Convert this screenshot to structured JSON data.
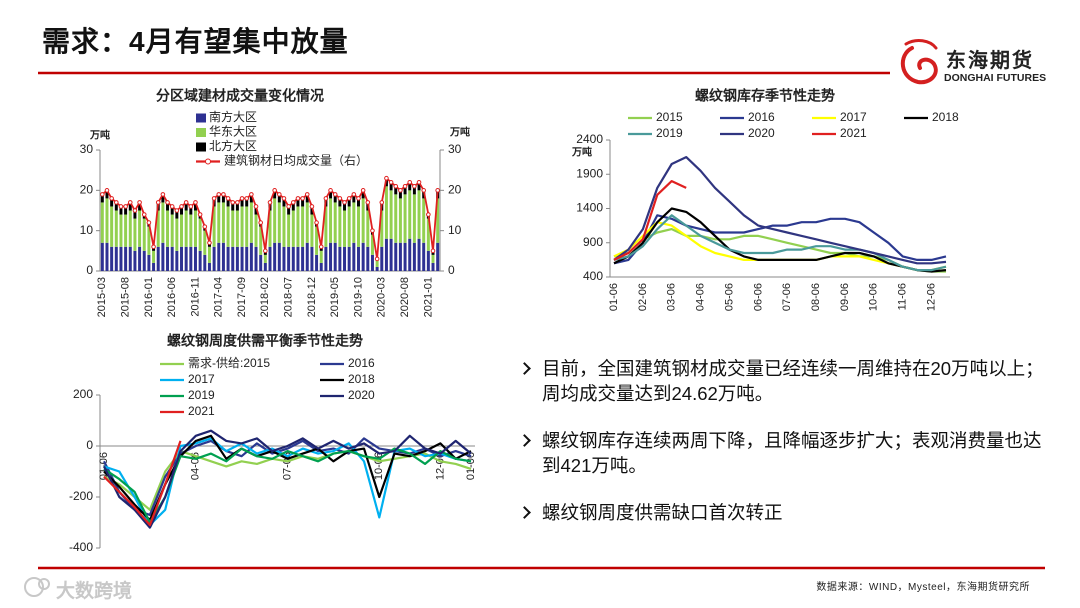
{
  "header": {
    "title": "需求：4月有望集中放量",
    "logo_cn": "东海期货",
    "logo_en": "DONGHAI FUTURES"
  },
  "bullets": [
    "目前，全国建筑钢材成交量已经连续一周维持在20万吨以上；周均成交量达到24.62万吨。",
    "螺纹钢库存连续两周下降，且降幅逐步扩大；表观消费量也达到421万吨。",
    "螺纹钢周度供需缺口首次转正"
  ],
  "source": "数据来源：WIND，Mysteel，东海期货研究所",
  "watermark": "大数跨境",
  "chart_data": [
    {
      "type": "bar",
      "stacked": true,
      "title": "分区域建材成交量变化情况",
      "y_label": "万吨",
      "y2_label": "万吨",
      "categories": [
        "2015-03",
        null,
        null,
        null,
        null,
        "2015-08",
        null,
        null,
        null,
        null,
        "2016-01",
        null,
        null,
        null,
        null,
        "2016-06",
        null,
        null,
        null,
        null,
        "2016-11",
        null,
        null,
        null,
        null,
        "2017-04",
        null,
        null,
        null,
        null,
        "2017-09",
        null,
        null,
        null,
        null,
        "2018-02",
        null,
        null,
        null,
        null,
        "2018-07",
        null,
        null,
        null,
        null,
        "2018-12",
        null,
        null,
        null,
        null,
        "2019-05",
        null,
        null,
        null,
        null,
        "2019-10",
        null,
        null,
        null,
        null,
        "2020-03",
        null,
        null,
        null,
        null,
        "2020-08",
        null,
        null,
        null,
        null,
        "2021-01",
        null,
        null
      ],
      "series": [
        {
          "name": "南方大区",
          "color": "#2e3192",
          "values": [
            7,
            7,
            6,
            6,
            6,
            6,
            6,
            5,
            6,
            5,
            4,
            2,
            6,
            7,
            6,
            6,
            5,
            6,
            6,
            6,
            6,
            5,
            4,
            2,
            6,
            7,
            7,
            6,
            6,
            6,
            6,
            6,
            7,
            6,
            4,
            2,
            6,
            7,
            7,
            6,
            6,
            6,
            6,
            6,
            7,
            6,
            4,
            2,
            6,
            7,
            7,
            6,
            6,
            6,
            7,
            6,
            7,
            6,
            4,
            1,
            6,
            8,
            8,
            7,
            7,
            7,
            8,
            7,
            8,
            7,
            5,
            2,
            7
          ]
        },
        {
          "name": "华东大区",
          "color": "#92d050",
          "values": [
            10,
            11,
            10,
            9,
            8,
            8,
            9,
            8,
            9,
            8,
            7,
            3,
            9,
            10,
            9,
            8,
            8,
            8,
            9,
            8,
            9,
            8,
            6,
            4,
            10,
            10,
            10,
            10,
            9,
            9,
            10,
            10,
            10,
            8,
            7,
            2,
            9,
            11,
            10,
            10,
            8,
            9,
            10,
            10,
            10,
            8,
            7,
            3,
            10,
            11,
            10,
            10,
            9,
            10,
            10,
            10,
            11,
            9,
            5,
            2,
            9,
            13,
            12,
            12,
            11,
            12,
            12,
            12,
            12,
            11,
            8,
            2,
            11
          ]
        },
        {
          "name": "北方大区",
          "color": "#000000",
          "values": [
            2,
            2,
            2,
            2,
            2,
            2,
            2,
            2,
            2,
            1,
            1,
            1,
            2,
            2,
            2,
            2,
            2,
            2,
            2,
            2,
            2,
            1,
            1,
            1,
            2,
            2,
            2,
            2,
            2,
            2,
            2,
            2,
            2,
            2,
            1,
            1,
            2,
            2,
            2,
            2,
            2,
            2,
            2,
            2,
            2,
            2,
            1,
            1,
            2,
            2,
            2,
            2,
            2,
            2,
            2,
            2,
            2,
            2,
            1,
            0,
            2,
            2,
            2,
            2,
            2,
            2,
            2,
            2,
            2,
            2,
            1,
            1,
            2
          ]
        },
        {
          "name": "建筑钢材日均成交量（右）",
          "color": "#e02020",
          "type": "line",
          "axis": "y2",
          "values": [
            19,
            20,
            18,
            17,
            16,
            16,
            17,
            15,
            17,
            14,
            12,
            6,
            17,
            19,
            17,
            16,
            15,
            16,
            17,
            16,
            17,
            14,
            11,
            7,
            18,
            19,
            19,
            18,
            17,
            17,
            18,
            18,
            19,
            16,
            12,
            5,
            17,
            20,
            19,
            18,
            16,
            17,
            18,
            18,
            19,
            16,
            12,
            6,
            18,
            20,
            19,
            18,
            17,
            18,
            19,
            18,
            20,
            17,
            10,
            3,
            17,
            23,
            22,
            21,
            20,
            21,
            22,
            21,
            22,
            20,
            14,
            5,
            20
          ]
        }
      ],
      "ylim": [
        0,
        30
      ],
      "yticks": [
        0,
        10,
        20,
        30
      ],
      "y2lim": [
        0,
        30
      ],
      "y2ticks": [
        0,
        10,
        20,
        30
      ],
      "grid": false
    },
    {
      "type": "line",
      "title": "螺纹钢库存季节性走势",
      "y_label": "万吨",
      "categories": [
        "01-06",
        null,
        "02-06",
        null,
        "03-06",
        null,
        "04-06",
        null,
        "05-06",
        null,
        "06-06",
        null,
        "07-06",
        null,
        "08-06",
        null,
        "09-06",
        null,
        "10-06",
        null,
        "11-06",
        null,
        "12-06",
        null
      ],
      "series": [
        {
          "name": "2015",
          "color": "#92d050",
          "values": [
            700,
            750,
            950,
            1050,
            1100,
            1000,
            1000,
            950,
            950,
            1000,
            1000,
            950,
            900,
            850,
            800,
            750,
            750,
            700,
            700,
            650,
            550,
            500,
            480,
            480
          ]
        },
        {
          "name": "2016",
          "color": "#2b3990",
          "values": [
            600,
            650,
            900,
            1300,
            1250,
            1150,
            1100,
            1050,
            1050,
            1050,
            1100,
            1150,
            1150,
            1200,
            1200,
            1250,
            1250,
            1200,
            1050,
            900,
            700,
            650,
            650,
            700
          ]
        },
        {
          "name": "2017",
          "color": "#ffff00",
          "values": [
            700,
            800,
            1000,
            1200,
            1150,
            1000,
            850,
            750,
            700,
            650,
            650,
            650,
            650,
            650,
            650,
            700,
            700,
            700,
            650,
            600,
            550,
            500,
            500,
            550
          ]
        },
        {
          "name": "2018",
          "color": "#000000",
          "values": [
            600,
            700,
            900,
            1200,
            1400,
            1350,
            1200,
            1000,
            800,
            700,
            650,
            650,
            650,
            650,
            650,
            700,
            750,
            750,
            700,
            600,
            550,
            500,
            480,
            500
          ]
        },
        {
          "name": "2019",
          "color": "#4a9a9a",
          "values": [
            650,
            700,
            850,
            1100,
            1300,
            1150,
            1000,
            900,
            800,
            750,
            750,
            750,
            800,
            800,
            850,
            850,
            800,
            800,
            750,
            650,
            550,
            500,
            500,
            550
          ]
        },
        {
          "name": "2020",
          "color": "#303580",
          "values": [
            650,
            800,
            1100,
            1700,
            2050,
            2150,
            1950,
            1700,
            1500,
            1300,
            1150,
            1100,
            1050,
            1000,
            950,
            900,
            850,
            800,
            750,
            700,
            650,
            600,
            600,
            620
          ]
        },
        {
          "name": "2021",
          "color": "#e02020",
          "values": [
            650,
            750,
            950,
            1600,
            1800,
            1700,
            null,
            null,
            null,
            null,
            null,
            null,
            null,
            null,
            null,
            null,
            null,
            null,
            null,
            null,
            null,
            null,
            null,
            null
          ]
        }
      ],
      "ylim": [
        400,
        2400
      ],
      "yticks": [
        400,
        900,
        1400,
        1900,
        2400
      ],
      "grid": false
    },
    {
      "type": "line",
      "title": "螺纹钢周度供需平衡季节性走势",
      "categories": [
        "01-06",
        null,
        null,
        null,
        null,
        null,
        "04-06",
        null,
        null,
        null,
        null,
        null,
        "07-06",
        null,
        null,
        null,
        null,
        null,
        "10-06",
        null,
        null,
        null,
        "12-06",
        null,
        "01-06"
      ],
      "series": [
        {
          "name": "需求-供给:2015",
          "color": "#92d050",
          "values": [
            -120,
            -150,
            -200,
            -250,
            -100,
            -20,
            -40,
            -60,
            -80,
            -60,
            -70,
            -50,
            -60,
            -40,
            -50,
            -30,
            -20,
            -40,
            -60,
            -50,
            -40,
            -30,
            -60,
            -70,
            -90
          ]
        },
        {
          "name": "2016",
          "color": "#2b3990",
          "values": [
            -60,
            -180,
            -250,
            -270,
            -120,
            -30,
            0,
            20,
            -20,
            -40,
            10,
            -30,
            -10,
            20,
            -20,
            -10,
            -30,
            30,
            -10,
            -20,
            -30,
            -10,
            -40,
            -20,
            -40
          ]
        },
        {
          "name": "2017",
          "color": "#00b0f0",
          "values": [
            -80,
            -100,
            -200,
            -310,
            -250,
            0,
            10,
            30,
            -20,
            10,
            -30,
            -10,
            -40,
            -10,
            -30,
            -20,
            10,
            -60,
            -280,
            -20,
            -10,
            -40,
            -30,
            -50,
            -60
          ]
        },
        {
          "name": "2018",
          "color": "#000000",
          "values": [
            -100,
            -160,
            -230,
            -290,
            -150,
            -40,
            20,
            40,
            -50,
            -10,
            -40,
            -20,
            -50,
            -30,
            -10,
            -60,
            -20,
            -10,
            -200,
            -30,
            -40,
            -20,
            10,
            -50,
            -20
          ]
        },
        {
          "name": "2019",
          "color": "#00a050",
          "values": [
            -90,
            -130,
            -180,
            -300,
            -200,
            -40,
            -50,
            -30,
            -60,
            -10,
            -40,
            -50,
            -20,
            -40,
            -60,
            -30,
            -20,
            -40,
            -50,
            -10,
            -30,
            -70,
            -20,
            -50,
            -60
          ]
        },
        {
          "name": "2020",
          "color": "#1f2570",
          "values": [
            -80,
            -200,
            -250,
            -320,
            -200,
            -20,
            40,
            60,
            20,
            10,
            30,
            -20,
            0,
            30,
            -10,
            20,
            -10,
            10,
            -30,
            -20,
            40,
            -10,
            -30,
            20,
            -30
          ]
        },
        {
          "name": "2021",
          "color": "#e02020",
          "values": [
            -120,
            -180,
            -240,
            -310,
            -150,
            20,
            null,
            null,
            null,
            null,
            null,
            null,
            null,
            null,
            null,
            null,
            null,
            null,
            null,
            null,
            null,
            null,
            null,
            null,
            null
          ]
        }
      ],
      "ylim": [
        -400,
        200
      ],
      "yticks": [
        -400,
        -200,
        0,
        200
      ],
      "grid": false
    }
  ]
}
